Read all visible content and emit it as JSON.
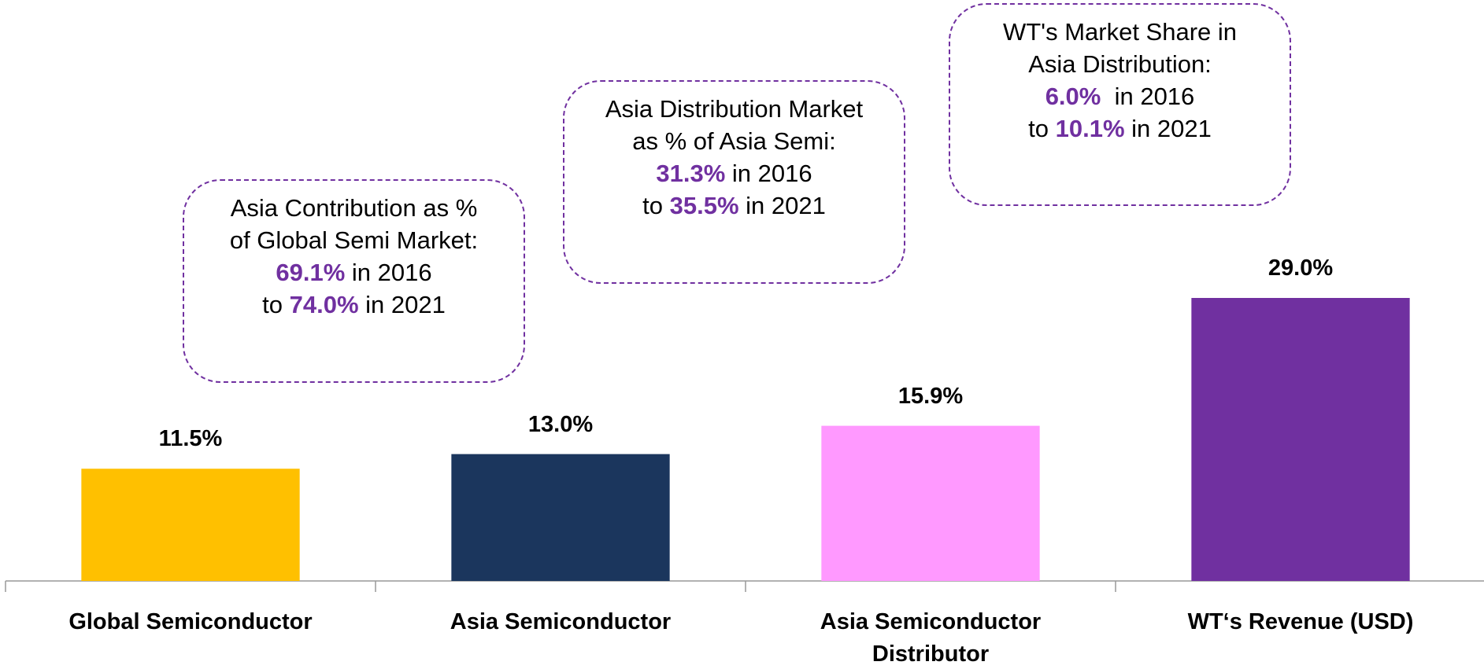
{
  "chart_data": {
    "type": "bar",
    "categories": [
      "Global Semiconductor",
      "Asia Semiconductor",
      "Asia Semiconductor Distributor",
      "WT‘s Revenue (USD)"
    ],
    "values": [
      11.5,
      13.0,
      15.9,
      29.0
    ],
    "value_labels": [
      "11.5%",
      "13.0%",
      "15.9%",
      "29.0%"
    ],
    "colors": [
      "#ffc000",
      "#1b365d",
      "#ff99ff",
      "#7030a0"
    ],
    "annotations": [
      {
        "lines": [
          [
            {
              "text": "Asia Contribution as %"
            }
          ],
          [
            {
              "text": "of Global Semi Market:"
            }
          ],
          [
            {
              "text": "69.1%",
              "emphasis": true
            },
            {
              "text": " in 2016"
            }
          ],
          [
            {
              "text": "to "
            },
            {
              "text": "74.0%",
              "emphasis": true
            },
            {
              "text": " in 2021"
            }
          ]
        ]
      },
      {
        "lines": [
          [
            {
              "text": "Asia Distribution Market"
            }
          ],
          [
            {
              "text": "as % of Asia Semi:"
            }
          ],
          [
            {
              "text": "31.3%",
              "emphasis": true
            },
            {
              "text": " in 2016"
            }
          ],
          [
            {
              "text": "to "
            },
            {
              "text": "35.5%",
              "emphasis": true
            },
            {
              "text": " in 2021"
            }
          ]
        ]
      },
      {
        "lines": [
          [
            {
              "text": "WT's Market Share in"
            }
          ],
          [
            {
              "text": "Asia Distribution:"
            }
          ],
          [
            {
              "text": "6.0%",
              "emphasis": true
            },
            {
              "text": "  in 2016"
            }
          ],
          [
            {
              "text": "to "
            },
            {
              "text": "10.1%",
              "emphasis": true
            },
            {
              "text": " in 2021"
            }
          ]
        ]
      }
    ],
    "emphasis_color": "#7030a0"
  }
}
